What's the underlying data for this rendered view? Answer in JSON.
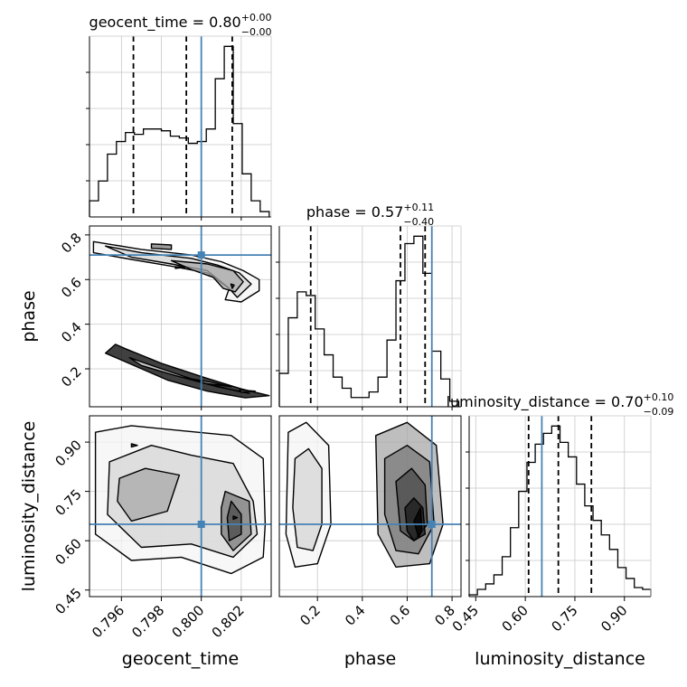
{
  "chart_data": {
    "type": "corner",
    "parameters": [
      "geocent_time",
      "phase",
      "luminosity_distance"
    ],
    "truth": {
      "geocent_time": 0.8,
      "phase": 0.71,
      "luminosity_distance": 0.65
    },
    "truth_color": "#4682b4",
    "panels": [
      {
        "kind": "histogram",
        "parameter": "geocent_time",
        "title": {
          "text": "geocent_time = 0.80",
          "plus": "+0.00",
          "minus": "−0.00"
        },
        "xlim": [
          0.7944,
          0.8035
        ],
        "bins": [
          0.7944,
          0.79485,
          0.7953,
          0.79575,
          0.7962,
          0.79665,
          0.7971,
          0.79755,
          0.798,
          0.79845,
          0.7989,
          0.79935,
          0.7998,
          0.80025,
          0.8007,
          0.80115,
          0.8016,
          0.80205,
          0.8025,
          0.80295,
          0.8034
        ],
        "counts": [
          9,
          20,
          35,
          42,
          47,
          46,
          49,
          49,
          48,
          45,
          44,
          41,
          42,
          49,
          77,
          95,
          52,
          24,
          9,
          3
        ],
        "quantiles": [
          0.7966,
          0.79925,
          0.80155
        ]
      },
      {
        "kind": "histogram",
        "parameter": "phase",
        "title": {
          "text": "phase = 0.57",
          "plus": "+0.11",
          "minus": "−0.40"
        },
        "xlim": [
          0.03,
          0.84
        ],
        "bins": [
          0.03,
          0.07,
          0.11,
          0.15,
          0.19,
          0.23,
          0.27,
          0.31,
          0.35,
          0.39,
          0.43,
          0.47,
          0.51,
          0.55,
          0.59,
          0.63,
          0.67,
          0.71,
          0.75,
          0.79,
          0.83
        ],
        "counts": [
          18,
          48,
          62,
          60,
          42,
          28,
          16,
          10,
          5,
          5,
          8,
          16,
          36,
          68,
          88,
          92,
          72,
          30,
          15,
          3
        ],
        "quantiles": [
          0.17,
          0.57,
          0.68
        ]
      },
      {
        "kind": "histogram",
        "parameter": "luminosity_distance",
        "title": {
          "text": "luminosity_distance = 0.70",
          "plus": "+0.10",
          "minus": "−0.09"
        },
        "xlim": [
          0.43,
          0.98
        ],
        "bins": [
          0.43,
          0.455,
          0.48,
          0.505,
          0.53,
          0.555,
          0.58,
          0.605,
          0.63,
          0.655,
          0.68,
          0.705,
          0.73,
          0.755,
          0.78,
          0.805,
          0.83,
          0.855,
          0.88,
          0.905,
          0.93,
          0.955,
          0.98
        ],
        "counts": [
          1,
          4,
          7,
          12,
          22,
          38,
          58,
          74,
          84,
          90,
          94,
          85,
          77,
          62,
          50,
          42,
          34,
          26,
          16,
          10,
          5,
          4
        ],
        "quantiles": [
          0.61,
          0.7,
          0.8
        ]
      },
      {
        "kind": "2d",
        "x": "geocent_time",
        "y": "phase",
        "xlim": [
          0.7944,
          0.8035
        ],
        "ylim": [
          0.03,
          0.84
        ],
        "contours": [
          [
            [
              0.7946,
              0.77
            ],
            [
              0.797,
              0.735
            ],
            [
              0.7995,
              0.71
            ],
            [
              0.801,
              0.68
            ],
            [
              0.8021,
              0.64
            ],
            [
              0.8029,
              0.6
            ],
            [
              0.8029,
              0.55
            ],
            [
              0.802,
              0.5
            ],
            [
              0.8012,
              0.51
            ],
            [
              0.8014,
              0.56
            ],
            [
              0.8003,
              0.63
            ],
            [
              0.7985,
              0.66
            ],
            [
              0.7965,
              0.69
            ],
            [
              0.7946,
              0.72
            ]
          ],
          [
            [
              0.7952,
              0.75
            ],
            [
              0.797,
              0.72
            ],
            [
              0.7995,
              0.695
            ],
            [
              0.8008,
              0.665
            ],
            [
              0.8019,
              0.63
            ],
            [
              0.8025,
              0.58
            ],
            [
              0.8018,
              0.52
            ],
            [
              0.8014,
              0.56
            ],
            [
              0.8003,
              0.64
            ],
            [
              0.7985,
              0.67
            ],
            [
              0.7965,
              0.7
            ]
          ],
          [
            [
              0.7985,
              0.685
            ],
            [
              0.8003,
              0.67
            ],
            [
              0.8016,
              0.64
            ],
            [
              0.8021,
              0.59
            ],
            [
              0.8017,
              0.545
            ],
            [
              0.8011,
              0.56
            ],
            [
              0.8006,
              0.61
            ],
            [
              0.7995,
              0.645
            ]
          ],
          [
            [
              0.7975,
              0.76
            ],
            [
              0.7985,
              0.755
            ],
            [
              0.7985,
              0.735
            ],
            [
              0.7975,
              0.74
            ]
          ],
          [
            [
              0.7987,
              0.658
            ],
            [
              0.7992,
              0.655
            ],
            [
              0.7987,
              0.65
            ]
          ],
          [
            [
              0.80148,
              0.58
            ],
            [
              0.80165,
              0.575
            ],
            [
              0.80155,
              0.56
            ]
          ],
          [
            [
              0.7957,
              0.31
            ],
            [
              0.7962,
              0.29
            ],
            [
              0.798,
              0.225
            ],
            [
              0.8002,
              0.16
            ],
            [
              0.802,
              0.11
            ],
            [
              0.8034,
              0.08
            ],
            [
              0.8022,
              0.07
            ],
            [
              0.8003,
              0.1
            ],
            [
              0.7983,
              0.15
            ],
            [
              0.7965,
              0.22
            ],
            [
              0.7952,
              0.27
            ]
          ],
          [
            [
              0.7964,
              0.25
            ],
            [
              0.798,
              0.2
            ],
            [
              0.8,
              0.14
            ],
            [
              0.8018,
              0.1
            ],
            [
              0.8024,
              0.09
            ],
            [
              0.8008,
              0.12
            ],
            [
              0.7987,
              0.17
            ],
            [
              0.797,
              0.215
            ]
          ],
          [
            [
              0.7995,
              0.155
            ],
            [
              0.8005,
              0.14
            ],
            [
              0.8015,
              0.12
            ],
            [
              0.8002,
              0.135
            ]
          ],
          [
            [
              0.8019,
              0.105
            ],
            [
              0.8027,
              0.1
            ],
            [
              0.802,
              0.095
            ]
          ]
        ]
      },
      {
        "kind": "2d",
        "x": "geocent_time",
        "y": "luminosity_distance",
        "xlim": [
          0.7944,
          0.8035
        ],
        "ylim": [
          0.43,
          0.98
        ],
        "contours": [
          [
            [
              0.7947,
              0.93
            ],
            [
              0.7965,
              0.95
            ],
            [
              0.799,
              0.935
            ],
            [
              0.8015,
              0.92
            ],
            [
              0.8031,
              0.85
            ],
            [
              0.8032,
              0.65
            ],
            [
              0.8031,
              0.55
            ],
            [
              0.8015,
              0.5
            ],
            [
              0.799,
              0.55
            ],
            [
              0.7965,
              0.54
            ],
            [
              0.7947,
              0.62
            ]
          ],
          [
            [
              0.7954,
              0.84
            ],
            [
              0.7975,
              0.89
            ],
            [
              0.7995,
              0.86
            ],
            [
              0.8016,
              0.835
            ],
            [
              0.8026,
              0.72
            ],
            [
              0.8028,
              0.62
            ],
            [
              0.8016,
              0.55
            ],
            [
              0.7995,
              0.59
            ],
            [
              0.797,
              0.58
            ],
            [
              0.7953,
              0.68
            ]
          ],
          [
            [
              0.7959,
              0.79
            ],
            [
              0.7972,
              0.82
            ],
            [
              0.7989,
              0.8
            ],
            [
              0.7983,
              0.69
            ],
            [
              0.7965,
              0.66
            ],
            [
              0.7958,
              0.72
            ]
          ],
          [
            [
              0.8012,
              0.75
            ],
            [
              0.8024,
              0.72
            ],
            [
              0.8025,
              0.62
            ],
            [
              0.8016,
              0.57
            ],
            [
              0.801,
              0.62
            ],
            [
              0.801,
              0.7
            ]
          ],
          [
            [
              0.8015,
              0.72
            ],
            [
              0.802,
              0.68
            ],
            [
              0.802,
              0.62
            ],
            [
              0.8014,
              0.6
            ],
            [
              0.8013,
              0.67
            ]
          ],
          [
            [
              0.8016,
              0.675
            ],
            [
              0.8018,
              0.67
            ],
            [
              0.8016,
              0.665
            ]
          ],
          [
            [
              0.7965,
              0.895
            ],
            [
              0.7968,
              0.89
            ],
            [
              0.7965,
              0.885
            ]
          ]
        ]
      },
      {
        "kind": "2d",
        "x": "phase",
        "y": "luminosity_distance",
        "xlim": [
          0.03,
          0.84
        ],
        "ylim": [
          0.43,
          0.98
        ],
        "contours": [
          [
            [
              0.07,
              0.93
            ],
            [
              0.15,
              0.96
            ],
            [
              0.25,
              0.89
            ],
            [
              0.26,
              0.65
            ],
            [
              0.2,
              0.53
            ],
            [
              0.1,
              0.52
            ],
            [
              0.06,
              0.62
            ]
          ],
          [
            [
              0.1,
              0.85
            ],
            [
              0.16,
              0.88
            ],
            [
              0.22,
              0.82
            ],
            [
              0.22,
              0.65
            ],
            [
              0.18,
              0.57
            ],
            [
              0.11,
              0.58
            ],
            [
              0.09,
              0.7
            ]
          ],
          [
            [
              0.46,
              0.92
            ],
            [
              0.6,
              0.96
            ],
            [
              0.73,
              0.89
            ],
            [
              0.76,
              0.65
            ],
            [
              0.7,
              0.53
            ],
            [
              0.55,
              0.52
            ],
            [
              0.47,
              0.62
            ]
          ],
          [
            [
              0.5,
              0.85
            ],
            [
              0.6,
              0.89
            ],
            [
              0.7,
              0.84
            ],
            [
              0.72,
              0.65
            ],
            [
              0.65,
              0.56
            ],
            [
              0.55,
              0.57
            ],
            [
              0.5,
              0.68
            ]
          ],
          [
            [
              0.55,
              0.78
            ],
            [
              0.62,
              0.82
            ],
            [
              0.68,
              0.77
            ],
            [
              0.69,
              0.65
            ],
            [
              0.63,
              0.6
            ],
            [
              0.57,
              0.63
            ]
          ],
          [
            [
              0.59,
              0.7
            ],
            [
              0.63,
              0.73
            ],
            [
              0.67,
              0.7
            ],
            [
              0.68,
              0.62
            ],
            [
              0.63,
              0.6
            ],
            [
              0.6,
              0.63
            ]
          ],
          [
            [
              0.63,
              0.66
            ],
            [
              0.66,
              0.7
            ],
            [
              0.665,
              0.63
            ],
            [
              0.65,
              0.61
            ]
          ]
        ]
      }
    ],
    "xlabels": [
      "geocent_time",
      "phase",
      "luminosity_distance"
    ],
    "ylabels": [
      "phase",
      "luminosity_distance"
    ],
    "ticks": {
      "geocent_time": [
        "0.796",
        "0.798",
        "0.800",
        "0.802"
      ],
      "phase": [
        "0.2",
        "0.4",
        "0.6",
        "0.8"
      ],
      "luminosity_distance": [
        "0.45",
        "0.60",
        "0.75",
        "0.90"
      ]
    },
    "tick_values": {
      "geocent_time": [
        0.796,
        0.798,
        0.8,
        0.802
      ],
      "phase": [
        0.2,
        0.4,
        0.6,
        0.8
      ],
      "luminosity_distance": [
        0.45,
        0.6,
        0.75,
        0.9
      ]
    },
    "grid": true
  }
}
